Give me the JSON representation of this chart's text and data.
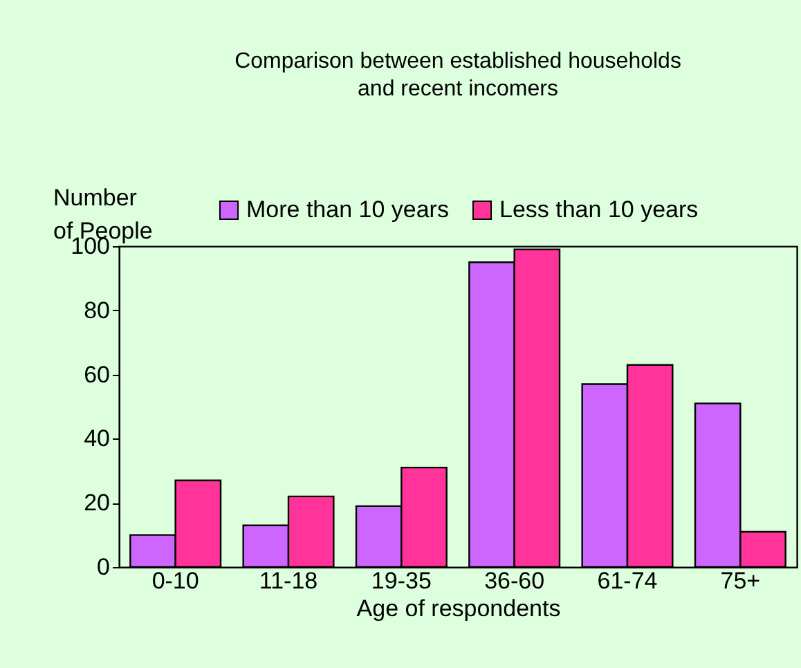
{
  "chart_data": {
    "type": "bar",
    "title": "Comparison between established households and recent incomers",
    "xlabel": "Age of respondents",
    "ylabel": "Number of People",
    "categories": [
      "0-10",
      "11-18",
      "19-35",
      "36-60",
      "61-74",
      "75+"
    ],
    "series": [
      {
        "name": "More than 10 years",
        "color": "#cc66ff",
        "values": [
          10,
          13,
          19,
          95,
          57,
          51
        ]
      },
      {
        "name": "Less than 10 years",
        "color": "#ff3399",
        "values": [
          27,
          22,
          31,
          99,
          63,
          11
        ]
      }
    ],
    "ylim": [
      0,
      100
    ],
    "yticks": [
      0,
      20,
      40,
      60,
      80,
      100
    ],
    "grid": false,
    "legend": "top right"
  }
}
